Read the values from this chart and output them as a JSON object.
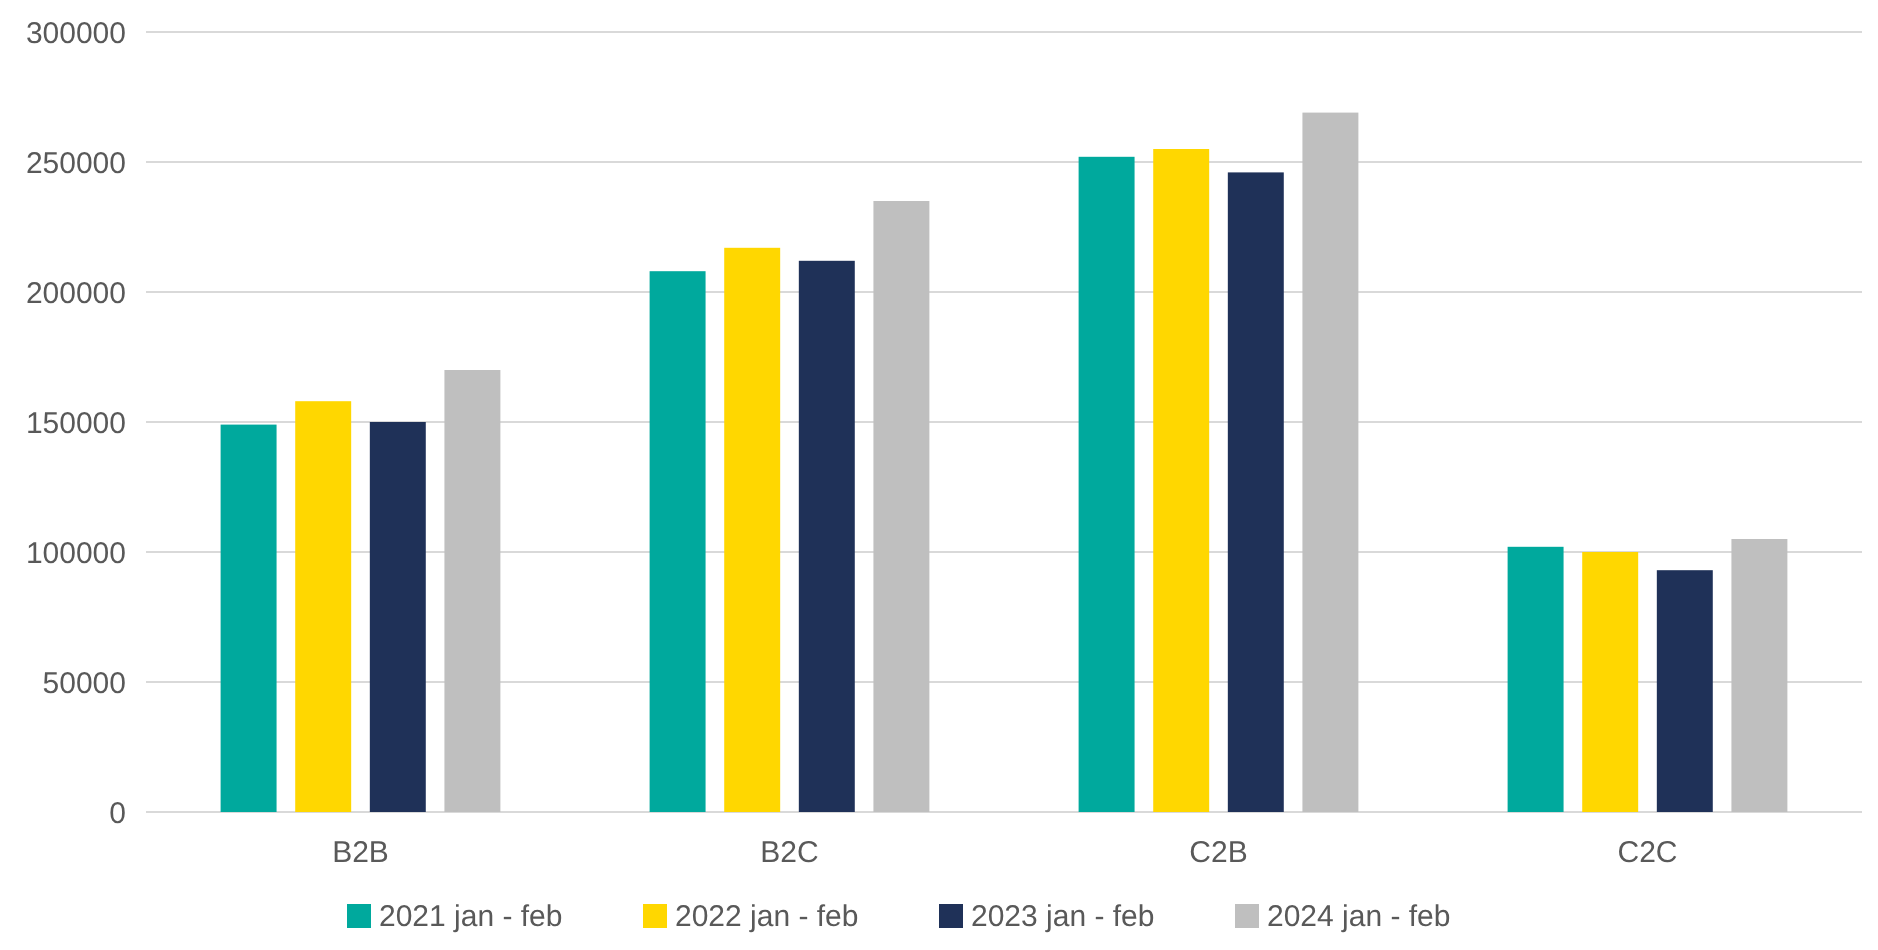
{
  "chart_data": {
    "type": "bar",
    "categories": [
      "B2B",
      "B2C",
      "C2B",
      "C2C"
    ],
    "series": [
      {
        "name": "2021 jan - feb",
        "color": "#00a99d",
        "values": [
          149000,
          208000,
          252000,
          102000
        ]
      },
      {
        "name": "2022 jan - feb",
        "color": "#ffd700",
        "values": [
          158000,
          217000,
          255000,
          100000
        ]
      },
      {
        "name": "2023 jan - feb",
        "color": "#1f3158",
        "values": [
          150000,
          212000,
          246000,
          93000
        ]
      },
      {
        "name": "2024 jan - feb",
        "color": "#bfbfbf",
        "values": [
          170000,
          235000,
          269000,
          105000
        ]
      }
    ],
    "ylim": [
      0,
      300000
    ],
    "yticks": [
      0,
      50000,
      100000,
      150000,
      200000,
      250000,
      300000
    ],
    "grid": "y",
    "legend": "bottom"
  }
}
